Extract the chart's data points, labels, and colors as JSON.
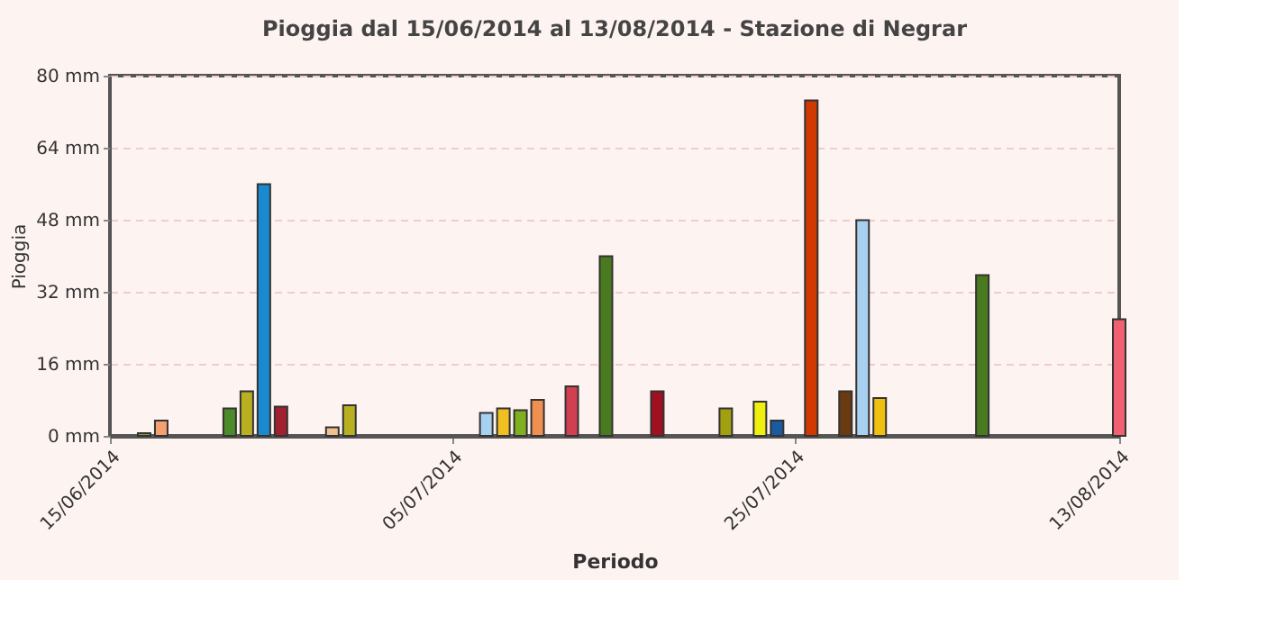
{
  "chart_data": {
    "type": "bar",
    "title": "Pioggia dal 15/06/2014 al 13/08/2014 - Stazione di Negrar",
    "xlabel": "Periodo",
    "ylabel": "Pioggia",
    "x": [
      "2014-06-17",
      "2014-06-18",
      "2014-06-22",
      "2014-06-23",
      "2014-06-24",
      "2014-06-25",
      "2014-06-28",
      "2014-06-29",
      "2014-07-07",
      "2014-07-08",
      "2014-07-09",
      "2014-07-10",
      "2014-07-12",
      "2014-07-14",
      "2014-07-17",
      "2014-07-21",
      "2014-07-23",
      "2014-07-24",
      "2014-07-26",
      "2014-07-28",
      "2014-07-29",
      "2014-07-30",
      "2014-08-05",
      "2014-08-13"
    ],
    "values": [
      0.6,
      3.4,
      6.1,
      9.9,
      55.9,
      6.5,
      1.9,
      6.8,
      5.1,
      6.1,
      5.7,
      8.0,
      11.0,
      39.9,
      9.9,
      6.1,
      7.6,
      3.4,
      74.5,
      9.9,
      47.9,
      8.4,
      35.7,
      25.9
    ],
    "colors": [
      "#8a9a3a",
      "#f4a070",
      "#4d8a2a",
      "#b8b020",
      "#1a8ad0",
      "#a02030",
      "#f0c090",
      "#b8b020",
      "#a8d0f0",
      "#f0c020",
      "#80b020",
      "#f09050",
      "#d04050",
      "#4a7a20",
      "#a01020",
      "#a0a010",
      "#f0f010",
      "#1a5aa0",
      "#d03a00",
      "#6a3a10",
      "#a8d0f0",
      "#f0c010",
      "#4a7a20",
      "#f06070"
    ],
    "xlim": [
      "2014-06-15",
      "2014-08-13"
    ],
    "xticks": [
      {
        "value": "2014-06-15",
        "label": "15/06/2014"
      },
      {
        "value": "2014-07-05",
        "label": "05/07/2014"
      },
      {
        "value": "2014-07-25",
        "label": "25/07/2014"
      },
      {
        "value": "2014-08-13",
        "label": "13/08/2014"
      }
    ],
    "ylim": [
      0,
      80
    ],
    "yticks": [
      {
        "value": 0,
        "label": "0 mm"
      },
      {
        "value": 16,
        "label": "16 mm"
      },
      {
        "value": 32,
        "label": "32 mm"
      },
      {
        "value": 48,
        "label": "48 mm"
      },
      {
        "value": 64,
        "label": "64 mm"
      },
      {
        "value": 80,
        "label": "80 mm"
      }
    ],
    "grid": "y",
    "line_style": "dashed",
    "legend": false
  }
}
